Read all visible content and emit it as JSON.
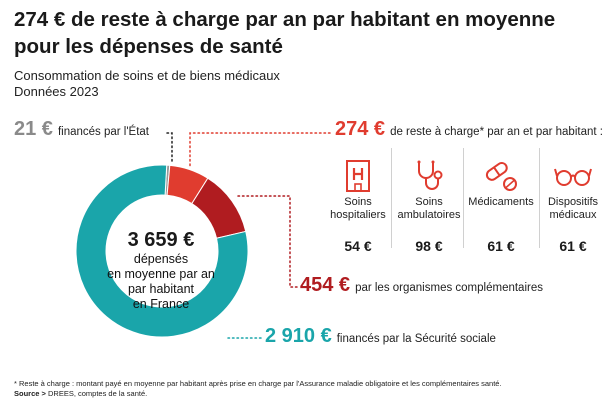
{
  "title": "274 € de reste à charge par an par habitant en moyenne pour les dépenses de santé",
  "subtitle_line1": "Consommation de soins et de biens médicaux",
  "subtitle_line2": "Données 2023",
  "chart_data": {
    "type": "pie",
    "unit": "€",
    "total": "3 659 €",
    "total_line1": "dépensés",
    "total_line2": "en moyenne par an",
    "total_line3": "par habitant",
    "total_line4": "en France",
    "slices": [
      {
        "value_label": "2 910 €",
        "value": 2910,
        "label": "financés par la Sécurité sociale",
        "color": "#1aa5aa"
      },
      {
        "value_label": "21 €",
        "value": 21,
        "label": "financés par l'État",
        "color": "#9a9a9a"
      },
      {
        "value_label": "274 €",
        "value": 274,
        "label": "de reste à charge* par an et par habitant :",
        "color": "#e03c2f"
      },
      {
        "value_label": "454 €",
        "value": 454,
        "label": "par les organismes complémentaires",
        "color": "#b01c20"
      }
    ],
    "breakdown": [
      {
        "name": "Soins hospitaliers",
        "value_label": "54 €",
        "value": 54,
        "icon": "hospital-icon"
      },
      {
        "name": "Soins ambulatoires",
        "value_label": "98 €",
        "value": 98,
        "icon": "stethoscope-icon"
      },
      {
        "name": "Médicaments",
        "value_label": "61 €",
        "value": 61,
        "icon": "pills-icon"
      },
      {
        "name": "Dispositifs médicaux",
        "value_label": "61 €",
        "value": 61,
        "icon": "glasses-icon"
      }
    ]
  },
  "footnote": "* Reste à charge : montant payé en moyenne par habitant après prise en charge par l'Assurance maladie obligatoire et les complémentaires santé.",
  "source_label": "Source >",
  "source_text": "DREES, comptes de la santé.",
  "colors": {
    "teal": "#1aa5aa",
    "grey": "#9a9a9a",
    "red": "#e03c2f",
    "darkred": "#b01c20"
  }
}
